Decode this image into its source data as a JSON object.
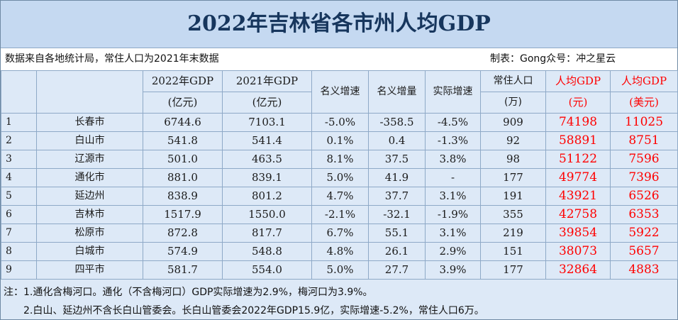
{
  "title": "2022年吉林省各市州人均GDP",
  "source_note": "数据来自各地统计局，常住人口为2021年末数据",
  "made_by": "制表：Gong众号：冲之星云",
  "headers": {
    "gdp2022": [
      "2022年GDP",
      "(亿元)"
    ],
    "gdp2021": [
      "2021年GDP",
      "(亿元)"
    ],
    "nominal_growth": "名义增速",
    "nominal_increase": "名义增量",
    "real_growth": "实际增速",
    "population": [
      "常住人口",
      "(万)"
    ],
    "per_capita_cny": [
      "人均GDP",
      "(元)"
    ],
    "per_capita_usd": [
      "人均GDP",
      "(美元)"
    ]
  },
  "rows": [
    {
      "idx": "1",
      "city": "长春市",
      "gdp2022": "6744.6",
      "gdp2021": "7103.1",
      "ng": "-5.0%",
      "ni": "-358.5",
      "rg": "-4.5%",
      "pop": "909",
      "pc_cny": "74198",
      "pc_usd": "11025"
    },
    {
      "idx": "2",
      "city": "白山市",
      "gdp2022": "541.8",
      "gdp2021": "541.4",
      "ng": "0.1%",
      "ni": "0.4",
      "rg": "-1.3%",
      "pop": "92",
      "pc_cny": "58891",
      "pc_usd": "8751"
    },
    {
      "idx": "3",
      "city": "辽源市",
      "gdp2022": "501.0",
      "gdp2021": "463.5",
      "ng": "8.1%",
      "ni": "37.5",
      "rg": "3.8%",
      "pop": "98",
      "pc_cny": "51122",
      "pc_usd": "7596"
    },
    {
      "idx": "4",
      "city": "通化市",
      "gdp2022": "881.0",
      "gdp2021": "839.1",
      "ng": "5.0%",
      "ni": "41.9",
      "rg": "-",
      "pop": "177",
      "pc_cny": "49774",
      "pc_usd": "7396"
    },
    {
      "idx": "5",
      "city": "延边州",
      "gdp2022": "838.9",
      "gdp2021": "801.2",
      "ng": "4.7%",
      "ni": "37.7",
      "rg": "3.1%",
      "pop": "191",
      "pc_cny": "43921",
      "pc_usd": "6526"
    },
    {
      "idx": "6",
      "city": "吉林市",
      "gdp2022": "1517.9",
      "gdp2021": "1550.0",
      "ng": "-2.1%",
      "ni": "-32.1",
      "rg": "-1.9%",
      "pop": "355",
      "pc_cny": "42758",
      "pc_usd": "6353"
    },
    {
      "idx": "7",
      "city": "松原市",
      "gdp2022": "872.8",
      "gdp2021": "817.7",
      "ng": "6.7%",
      "ni": "55.1",
      "rg": "3.1%",
      "pop": "219",
      "pc_cny": "39854",
      "pc_usd": "5922"
    },
    {
      "idx": "8",
      "city": "白城市",
      "gdp2022": "574.9",
      "gdp2021": "548.8",
      "ng": "4.8%",
      "ni": "26.1",
      "rg": "2.9%",
      "pop": "151",
      "pc_cny": "38073",
      "pc_usd": "5657"
    },
    {
      "idx": "9",
      "city": "四平市",
      "gdp2022": "581.7",
      "gdp2021": "554.0",
      "ng": "5.0%",
      "ni": "27.7",
      "rg": "3.9%",
      "pop": "177",
      "pc_cny": "32864",
      "pc_usd": "4883"
    }
  ],
  "notes": [
    "注：1.通化含梅河口。通化（不含梅河口）GDP实际增速为2.9%，梅河口为3.9%。",
    "2.白山、延边州不含长白山管委会。长白山管委会2022年GDP15.9亿，实际增速-5.2%，常住人口6万。"
  ]
}
